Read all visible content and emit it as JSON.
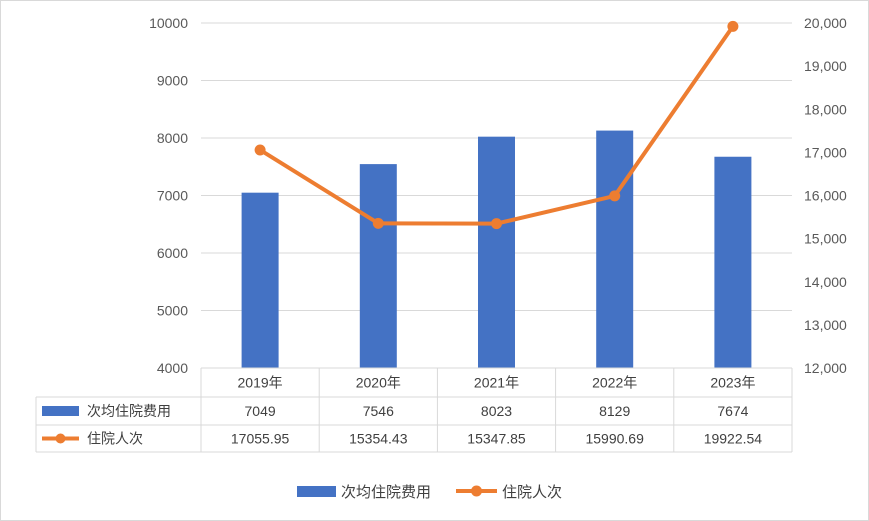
{
  "chart_data": {
    "type": "bar",
    "categories": [
      "2019年",
      "2020年",
      "2021年",
      "2022年",
      "2023年"
    ],
    "series": [
      {
        "name": "次均住院费用",
        "type": "bar",
        "axis": "left",
        "color": "#4472C4",
        "values": [
          7049,
          7546,
          8023,
          8129,
          7674
        ],
        "labels": [
          "7049",
          "7546",
          "8023",
          "8129",
          "7674"
        ]
      },
      {
        "name": "住院人次",
        "type": "line",
        "axis": "right",
        "color": "#ED7D31",
        "values": [
          17055.95,
          15354.43,
          15347.85,
          15990.69,
          19922.54
        ],
        "labels": [
          "17055.95",
          "15354.43",
          "15347.85",
          "15990.69",
          "19922.54"
        ]
      }
    ],
    "y_left": {
      "ylim": [
        4000,
        10000
      ],
      "ticks": [
        4000,
        5000,
        6000,
        7000,
        8000,
        9000,
        10000
      ],
      "tick_labels": [
        "4000",
        "5000",
        "6000",
        "7000",
        "8000",
        "9000",
        "10000"
      ]
    },
    "y_right": {
      "ylim": [
        12000,
        20000
      ],
      "ticks": [
        12000,
        13000,
        14000,
        15000,
        16000,
        17000,
        18000,
        19000,
        20000
      ],
      "tick_labels": [
        "12,000",
        "13,000",
        "14,000",
        "15,000",
        "16,000",
        "17,000",
        "18,000",
        "19,000",
        "20,000"
      ]
    },
    "grid": true,
    "data_table": true,
    "legend_position": "bottom"
  }
}
